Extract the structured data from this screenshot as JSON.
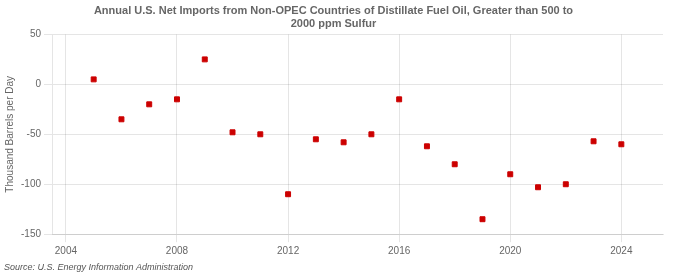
{
  "chart_data": {
    "type": "scatter",
    "title": "Annual U.S. Net Imports from Non-OPEC Countries of Distillate Fuel Oil, Greater than 500 to\n2000 ppm Sulfur",
    "ylabel": "Thousand Barrels per Day",
    "annotations": [
      "Source: U.S. Energy Information Administration"
    ],
    "x": [
      2005,
      2006,
      2007,
      2008,
      2009,
      2010,
      2011,
      2012,
      2013,
      2014,
      2015,
      2016,
      2017,
      2018,
      2019,
      2020,
      2021,
      2022,
      2023,
      2024
    ],
    "values": [
      5,
      -35,
      -20,
      -15,
      25,
      -48,
      -50,
      -110,
      -55,
      -58,
      -50,
      -15,
      -62,
      -80,
      -135,
      -90,
      -103,
      -100,
      -57,
      -60
    ],
    "color": "#cc0000",
    "marker": "square",
    "xlim": [
      2003.5,
      2025.5
    ],
    "ylim": [
      -150,
      50
    ],
    "xticks": [
      2004,
      2008,
      2012,
      2016,
      2020,
      2024
    ],
    "yticks": [
      -150,
      -100,
      -50,
      0,
      50
    ],
    "grid": true
  }
}
